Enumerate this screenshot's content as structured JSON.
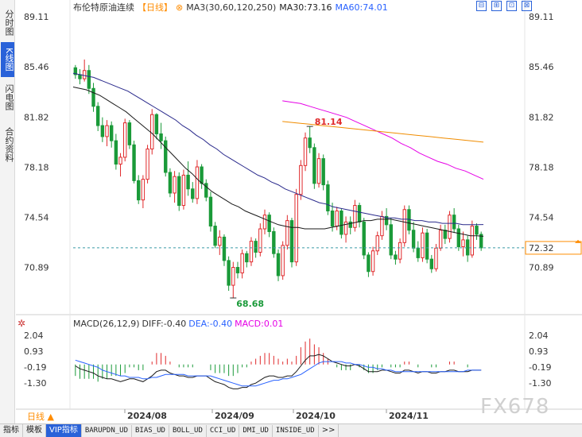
{
  "side_tabs": [
    "分时图",
    "K线图",
    "闪电图",
    "合约资料"
  ],
  "active_side_tab": "K线图",
  "title": {
    "name": "布伦特原油连续",
    "period": "【日线】",
    "ma_label": "MA3(30,60,120,250)",
    "ma30": "MA30:73.16",
    "ma60": "MA60:74.01"
  },
  "window_buttons": [
    "⊟",
    "⊞",
    "⊡",
    "⊠"
  ],
  "price_axis": {
    "left_labels": [
      "89.11",
      "85.46",
      "81.82",
      "78.18",
      "74.54",
      "70.89"
    ],
    "right_labels": [
      "89.11",
      "85.46",
      "81.82",
      "78.18",
      "74.54",
      "70.89"
    ],
    "current_price": "72.32"
  },
  "annotations": {
    "high": "81.14",
    "low": "68.68"
  },
  "macd": {
    "title": "MACD(26,12,9)",
    "diff": "DIFF:-0.40",
    "dea": "DEA:-0.40",
    "macd": "MACD:0.01",
    "axis_labels": [
      "2.04",
      "0.93",
      "-0.19",
      "-1.30"
    ]
  },
  "date_labels": [
    "2024/08",
    "2024/09",
    "2024/10",
    "2024/11"
  ],
  "period_button": "日线",
  "bottom_tabs": [
    "指标",
    "模板",
    "VIP指标",
    "BARUPDN_UD",
    "BIAS_UD",
    "BOLL_UD",
    "CCI_UD",
    "DMI_UD",
    "INSIDE_UD",
    ">>"
  ],
  "active_bottom_tab": "VIP指标",
  "watermark": "FX678",
  "colors": {
    "up": "#e0292b",
    "down": "#1a9a39",
    "ma_a": "#1a1a1a",
    "ma_b": "#2a2a8c",
    "ma_c": "#e600e6",
    "ma_d": "#f08c00",
    "accent": "#2962d9",
    "current_price": "#ff8c00"
  },
  "chart_data": {
    "type": "candlestick",
    "y_range": [
      68.68,
      89.11
    ],
    "candles": [
      [
        85.4,
        85.6,
        84.6,
        84.9
      ],
      [
        84.9,
        85.3,
        84.2,
        84.6
      ],
      [
        84.6,
        86.0,
        84.4,
        85.2
      ],
      [
        85.2,
        85.6,
        83.5,
        83.9
      ],
      [
        83.9,
        84.3,
        82.2,
        82.6
      ],
      [
        82.6,
        82.9,
        80.8,
        81.2
      ],
      [
        81.2,
        81.8,
        80.0,
        80.4
      ],
      [
        80.4,
        81.6,
        79.7,
        81.2
      ],
      [
        81.2,
        81.5,
        79.6,
        80.1
      ],
      [
        80.1,
        80.6,
        78.0,
        78.4
      ],
      [
        78.4,
        79.2,
        77.5,
        78.9
      ],
      [
        78.9,
        81.7,
        78.6,
        81.4
      ],
      [
        81.4,
        81.6,
        79.5,
        79.8
      ],
      [
        79.8,
        80.1,
        77.0,
        77.2
      ],
      [
        77.2,
        77.6,
        75.5,
        75.8
      ],
      [
        75.8,
        77.6,
        75.2,
        77.3
      ],
      [
        77.3,
        79.8,
        77.0,
        79.5
      ],
      [
        79.5,
        82.4,
        79.1,
        82.0
      ],
      [
        82.0,
        82.1,
        80.2,
        80.6
      ],
      [
        80.6,
        81.4,
        79.5,
        80.1
      ],
      [
        80.1,
        80.4,
        77.5,
        77.8
      ],
      [
        77.8,
        78.1,
        76.0,
        76.3
      ],
      [
        76.3,
        77.9,
        75.6,
        77.5
      ],
      [
        77.5,
        77.8,
        75.0,
        75.4
      ],
      [
        75.4,
        78.0,
        75.1,
        77.6
      ],
      [
        77.6,
        78.6,
        76.1,
        76.6
      ],
      [
        76.6,
        77.1,
        75.6,
        75.9
      ],
      [
        75.9,
        78.7,
        75.5,
        78.2
      ],
      [
        78.2,
        78.4,
        76.6,
        77.0
      ],
      [
        77.0,
        77.3,
        75.7,
        76.0
      ],
      [
        76.0,
        76.4,
        73.5,
        73.9
      ],
      [
        73.9,
        74.2,
        72.3,
        72.5
      ],
      [
        72.5,
        73.6,
        71.8,
        73.1
      ],
      [
        73.1,
        73.3,
        71.0,
        71.4
      ],
      [
        71.4,
        71.7,
        69.2,
        69.6
      ],
      [
        69.6,
        71.3,
        68.68,
        70.9
      ],
      [
        70.9,
        71.3,
        70.1,
        70.5
      ],
      [
        70.5,
        72.2,
        70.1,
        71.9
      ],
      [
        71.9,
        72.1,
        70.9,
        71.3
      ],
      [
        71.3,
        73.1,
        71.0,
        72.8
      ],
      [
        72.8,
        73.0,
        71.6,
        72.0
      ],
      [
        72.0,
        74.1,
        71.7,
        73.7
      ],
      [
        73.7,
        75.1,
        73.3,
        74.7
      ],
      [
        74.7,
        74.9,
        73.1,
        73.5
      ],
      [
        73.5,
        73.8,
        71.6,
        71.9
      ],
      [
        71.9,
        72.2,
        69.9,
        70.3
      ],
      [
        70.3,
        72.8,
        70.0,
        72.5
      ],
      [
        72.5,
        74.7,
        72.2,
        74.3
      ],
      [
        74.3,
        74.5,
        70.9,
        71.3
      ],
      [
        71.3,
        76.6,
        71.0,
        76.2
      ],
      [
        76.2,
        78.7,
        75.8,
        78.3
      ],
      [
        78.3,
        80.7,
        77.9,
        80.3
      ],
      [
        80.3,
        81.14,
        79.2,
        79.6
      ],
      [
        79.6,
        79.9,
        76.6,
        77.0
      ],
      [
        77.0,
        79.2,
        76.7,
        78.8
      ],
      [
        78.8,
        79.1,
        76.5,
        76.9
      ],
      [
        76.9,
        77.2,
        74.7,
        75.0
      ],
      [
        75.0,
        75.6,
        73.5,
        73.9
      ],
      [
        73.9,
        75.3,
        73.6,
        75.0
      ],
      [
        75.0,
        75.2,
        73.0,
        73.3
      ],
      [
        73.3,
        74.6,
        72.7,
        74.2
      ],
      [
        74.2,
        74.6,
        73.3,
        73.8
      ],
      [
        73.8,
        75.8,
        73.5,
        75.4
      ],
      [
        75.4,
        75.6,
        73.8,
        74.2
      ],
      [
        74.2,
        74.5,
        71.5,
        71.8
      ],
      [
        71.8,
        72.0,
        70.2,
        70.6
      ],
      [
        70.6,
        72.4,
        70.3,
        72.1
      ],
      [
        72.1,
        73.5,
        71.8,
        73.2
      ],
      [
        73.2,
        75.0,
        72.9,
        74.6
      ],
      [
        74.6,
        75.2,
        73.6,
        74.0
      ],
      [
        74.0,
        74.5,
        71.5,
        71.8
      ],
      [
        71.8,
        72.1,
        71.1,
        71.5
      ],
      [
        71.5,
        73.0,
        71.2,
        72.7
      ],
      [
        72.7,
        75.4,
        72.4,
        75.1
      ],
      [
        75.1,
        75.4,
        73.3,
        73.6
      ],
      [
        73.6,
        74.2,
        72.0,
        72.3
      ],
      [
        72.3,
        72.8,
        71.3,
        71.6
      ],
      [
        71.6,
        73.8,
        71.3,
        73.4
      ],
      [
        73.4,
        73.7,
        71.2,
        71.5
      ],
      [
        71.5,
        71.8,
        70.5,
        70.8
      ],
      [
        70.8,
        72.6,
        70.6,
        72.3
      ],
      [
        72.3,
        74.0,
        72.1,
        73.6
      ],
      [
        73.6,
        74.0,
        72.6,
        73.0
      ],
      [
        73.0,
        75.0,
        72.7,
        74.7
      ],
      [
        74.7,
        75.2,
        73.4,
        73.7
      ],
      [
        73.7,
        74.0,
        72.1,
        72.4
      ],
      [
        72.4,
        73.5,
        71.7,
        72.9
      ],
      [
        72.9,
        73.2,
        71.3,
        71.8
      ],
      [
        71.8,
        74.3,
        71.6,
        73.9
      ],
      [
        73.9,
        74.1,
        72.9,
        73.3
      ],
      [
        73.3,
        73.5,
        72.1,
        72.32
      ]
    ],
    "ma_series": [
      {
        "name": "MA30",
        "values": [
          84.0,
          83.9,
          83.8,
          83.6,
          83.4,
          83.1,
          82.8,
          82.5,
          82.2,
          81.8,
          81.4,
          81.0,
          80.6,
          80.1,
          79.6,
          79.1,
          78.6,
          78.1,
          77.7,
          77.2,
          76.8,
          76.4,
          76.1,
          75.8,
          75.5,
          75.3,
          75.0,
          74.8,
          74.6,
          74.4,
          74.2,
          74.0,
          73.9,
          73.8,
          73.8,
          73.7,
          73.7,
          73.7,
          73.7,
          73.8,
          73.9,
          74.0,
          74.1,
          74.2,
          74.3,
          74.3,
          74.4,
          74.4,
          74.4,
          74.3,
          74.2,
          74.1,
          74.0,
          73.9,
          73.8,
          73.7,
          73.6,
          73.5,
          73.4,
          73.3,
          73.2,
          73.2,
          73.16
        ]
      },
      {
        "name": "MA60",
        "values": [
          85.0,
          84.9,
          84.8,
          84.7,
          84.5,
          84.3,
          84.1,
          83.9,
          83.7,
          83.4,
          83.1,
          82.8,
          82.5,
          82.2,
          81.9,
          81.6,
          81.2,
          80.9,
          80.5,
          80.2,
          79.8,
          79.5,
          79.1,
          78.8,
          78.5,
          78.2,
          77.9,
          77.6,
          77.4,
          77.1,
          76.9,
          76.6,
          76.4,
          76.2,
          76.0,
          75.8,
          75.6,
          75.5,
          75.3,
          75.2,
          75.1,
          75.0,
          74.9,
          74.8,
          74.7,
          74.6,
          74.5,
          74.5,
          74.4,
          74.4,
          74.3,
          74.3,
          74.2,
          74.2,
          74.1,
          74.1,
          74.1,
          74.0,
          74.0,
          74.0,
          74.01
        ]
      },
      {
        "name": "MA120",
        "values": [
          83.0,
          82.9,
          82.8,
          82.6,
          82.4,
          82.2,
          82.0,
          81.8,
          81.5,
          81.2,
          80.9,
          80.6,
          80.3,
          79.9,
          79.6,
          79.2,
          78.9,
          78.6,
          78.4,
          78.1,
          77.9,
          77.6,
          77.3
        ]
      },
      {
        "name": "MA250",
        "values": [
          81.5,
          81.4,
          81.3,
          81.2,
          81.1,
          81.0,
          80.9,
          80.8,
          80.7,
          80.6,
          80.5,
          80.4,
          80.3,
          80.2,
          80.1,
          80.0
        ]
      }
    ],
    "macd_range": [
      -1.9,
      2.2
    ],
    "diff": [
      -0.1,
      -0.3,
      -0.4,
      -0.5,
      -0.6,
      -0.8,
      -0.9,
      -1.0,
      -1.0,
      -1.1,
      -1.2,
      -1.1,
      -1.0,
      -1.0,
      -1.1,
      -1.2,
      -1.0,
      -0.8,
      -0.5,
      -0.4,
      -0.4,
      -0.6,
      -0.7,
      -0.8,
      -0.8,
      -0.9,
      -0.9,
      -0.8,
      -0.8,
      -0.8,
      -1.0,
      -1.2,
      -1.3,
      -1.4,
      -1.6,
      -1.7,
      -1.7,
      -1.6,
      -1.6,
      -1.4,
      -1.3,
      -1.1,
      -0.9,
      -0.8,
      -0.8,
      -0.9,
      -0.9,
      -0.8,
      -0.8,
      -0.5,
      -0.1,
      0.3,
      0.6,
      0.6,
      0.7,
      0.6,
      0.4,
      0.2,
      0.1,
      0.0,
      -0.1,
      -0.1,
      0.0,
      -0.1,
      -0.3,
      -0.5,
      -0.5,
      -0.5,
      -0.4,
      -0.4,
      -0.5,
      -0.6,
      -0.6,
      -0.4,
      -0.4,
      -0.5,
      -0.6,
      -0.5,
      -0.5,
      -0.6,
      -0.6,
      -0.5,
      -0.5,
      -0.4,
      -0.4,
      -0.5,
      -0.5,
      -0.5,
      -0.4,
      -0.4,
      -0.4
    ],
    "dea": [
      0.3,
      0.2,
      0.1,
      0.0,
      -0.1,
      -0.2,
      -0.4,
      -0.5,
      -0.6,
      -0.7,
      -0.8,
      -0.8,
      -0.9,
      -0.9,
      -0.9,
      -1.0,
      -1.0,
      -0.9,
      -0.9,
      -0.8,
      -0.7,
      -0.7,
      -0.7,
      -0.7,
      -0.7,
      -0.8,
      -0.8,
      -0.8,
      -0.8,
      -0.8,
      -0.8,
      -0.9,
      -1.0,
      -1.1,
      -1.2,
      -1.3,
      -1.4,
      -1.5,
      -1.5,
      -1.5,
      -1.5,
      -1.4,
      -1.3,
      -1.2,
      -1.1,
      -1.1,
      -1.0,
      -1.0,
      -0.9,
      -0.8,
      -0.7,
      -0.5,
      -0.3,
      -0.1,
      0.1,
      0.2,
      0.2,
      0.2,
      0.2,
      0.2,
      0.1,
      0.1,
      0.0,
      0.0,
      -0.1,
      -0.2,
      -0.2,
      -0.3,
      -0.3,
      -0.4,
      -0.4,
      -0.5,
      -0.5,
      -0.5,
      -0.5,
      -0.5,
      -0.5,
      -0.5,
      -0.5,
      -0.5,
      -0.5,
      -0.5,
      -0.5,
      -0.5,
      -0.5,
      -0.5,
      -0.5,
      -0.4,
      -0.4,
      -0.4,
      -0.4
    ]
  }
}
